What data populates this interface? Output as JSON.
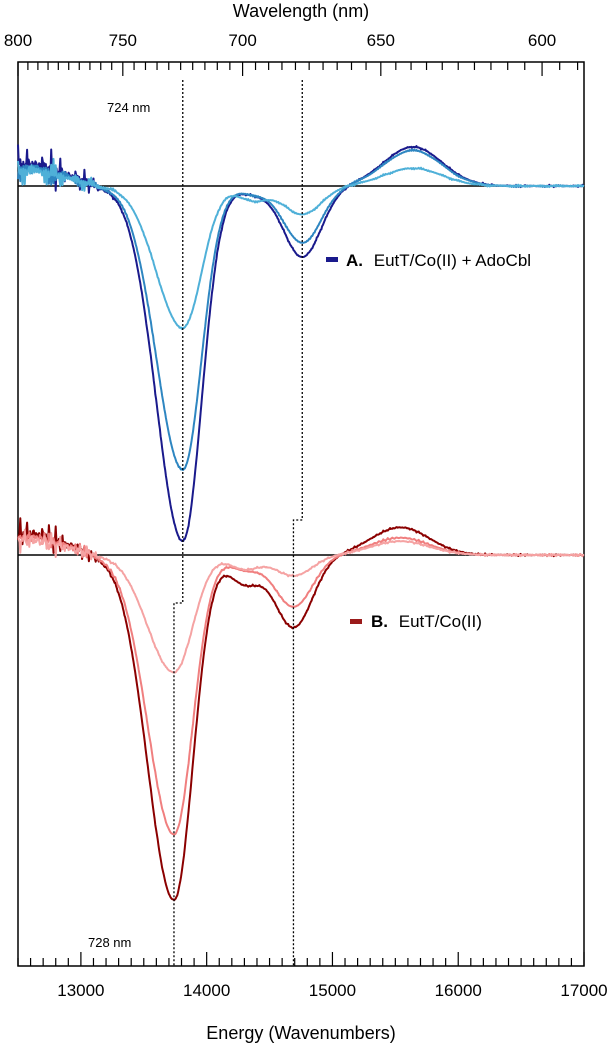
{
  "chart_data": {
    "type": "line",
    "x_axis_bottom": {
      "label": "Energy (Wavenumbers)",
      "range": [
        12500,
        17000
      ],
      "ticks": [
        13000,
        14000,
        15000,
        16000,
        17000
      ],
      "tick_labels": [
        "13000",
        "14000",
        "15000",
        "16000",
        "17000"
      ]
    },
    "x_axis_top": {
      "label": "Wavelength (nm)",
      "ticks": [
        800,
        750,
        700,
        650,
        600
      ],
      "tick_labels": [
        "800",
        "750",
        "700",
        "650",
        "600"
      ]
    },
    "annotations": {
      "top_peak": "724 nm",
      "bottom_peak": "728 nm"
    },
    "panels": [
      {
        "id": "A",
        "legend_bold": "A.",
        "legend_text": "EutT/Co(II) + AdoCbl",
        "legend_color": "#1a1a8c",
        "baseline": 0,
        "features": {
          "main_min_x": 13810,
          "secondary_min_x": 14760,
          "maximum_x": 15640
        },
        "series": [
          {
            "color": "#1a1a8c",
            "main_min": -1.0,
            "shoulder": -0.02,
            "secondary_min": -0.2,
            "maximum": 0.11
          },
          {
            "color": "#2e86c1",
            "main_min": -0.8,
            "shoulder": -0.02,
            "secondary_min": -0.16,
            "maximum": 0.1
          },
          {
            "color": "#4fb0d8",
            "main_min": -0.4,
            "shoulder": -0.04,
            "secondary_min": -0.08,
            "maximum": 0.05
          }
        ]
      },
      {
        "id": "B",
        "legend_bold": "B.",
        "legend_text": "EutT/Co(II)",
        "legend_color": "#9b1b1b",
        "baseline": 0,
        "features": {
          "main_min_x": 13740,
          "secondary_min_x": 14690,
          "maximum_x": 15540
        },
        "series": [
          {
            "color": "#8b0000",
            "main_min": -1.0,
            "shoulder": -0.08,
            "secondary_min": -0.21,
            "maximum": 0.08
          },
          {
            "color": "#f07f7f",
            "main_min": -0.81,
            "shoulder": -0.04,
            "secondary_min": -0.15,
            "maximum": 0.05
          },
          {
            "color": "#f5a3a3",
            "main_min": -0.34,
            "shoulder": -0.04,
            "secondary_min": -0.06,
            "maximum": 0.04
          }
        ]
      }
    ]
  }
}
